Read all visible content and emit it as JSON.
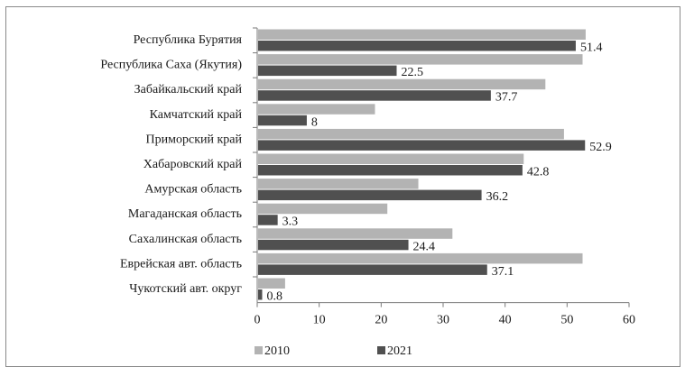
{
  "chart_data": {
    "type": "bar",
    "orientation": "horizontal",
    "categories": [
      "Республика Бурятия",
      "Республика Саха (Якутия)",
      "Забайкальский край",
      "Камчатский край",
      "Приморский край",
      "Хабаровский край",
      "Амурская  область",
      "Магаданская область",
      "Сахалинская область",
      "Еврейская авт. область",
      "Чукотский авт. округ"
    ],
    "series": [
      {
        "name": "2010",
        "color": "#b3b3b3",
        "values": [
          53.0,
          52.5,
          46.5,
          19.0,
          49.5,
          43.0,
          26.0,
          21.0,
          31.5,
          52.5,
          4.5
        ]
      },
      {
        "name": "2021",
        "color": "#505050",
        "values": [
          51.4,
          22.5,
          37.7,
          8,
          52.9,
          42.8,
          36.2,
          3.3,
          24.4,
          37.1,
          0.8
        ],
        "labels": [
          "51.4",
          "22.5",
          "37.7",
          "8",
          "52.9",
          "42.8",
          "36.2",
          "3.3",
          "24.4",
          "37.1",
          "0.8"
        ]
      }
    ],
    "xlim": [
      0,
      60
    ],
    "xticks": [
      "0",
      "10",
      "20",
      "30",
      "40",
      "50",
      "60"
    ],
    "grid": false,
    "legend_position": "bottom-left",
    "title": "",
    "xlabel": "",
    "ylabel": ""
  }
}
